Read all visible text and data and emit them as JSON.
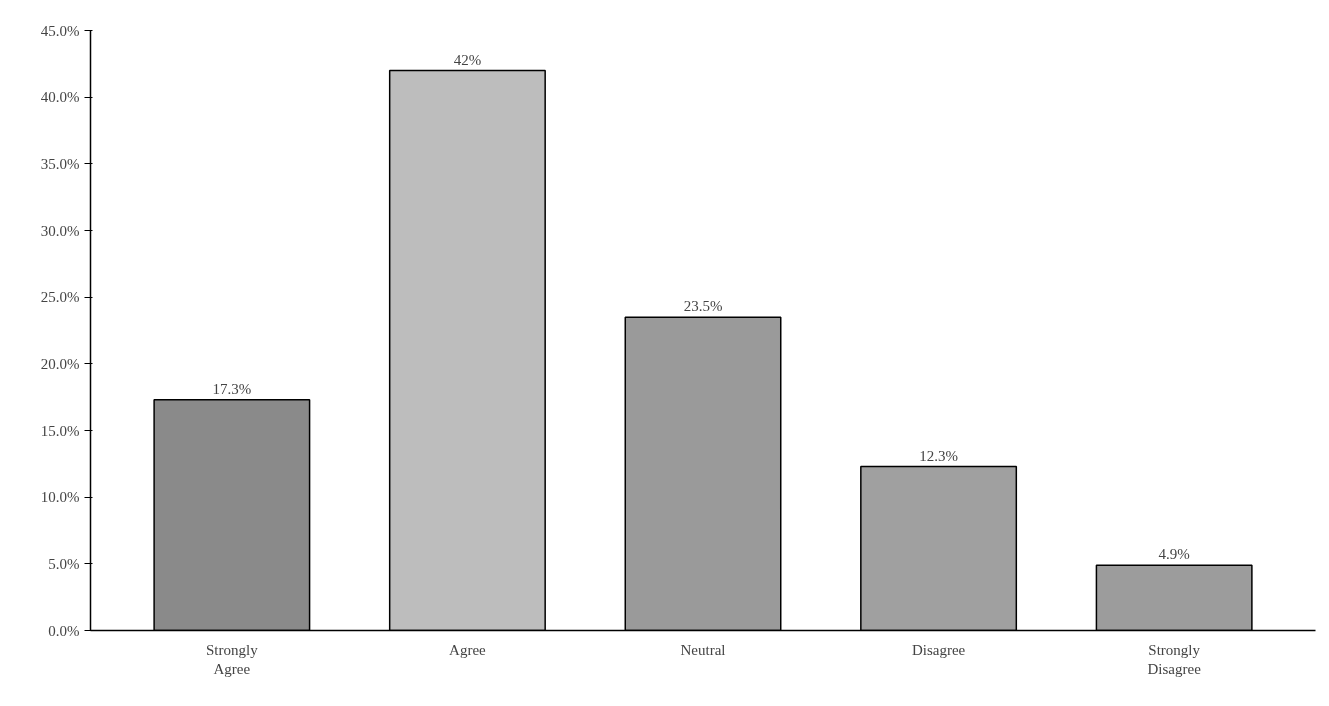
{
  "chart_data": {
    "type": "bar",
    "categories": [
      "Strongly\nAgree",
      "Agree",
      "Neutral",
      "Disagree",
      "Strongly\nDisagree"
    ],
    "values": [
      17.3,
      42,
      23.5,
      12.3,
      4.9
    ],
    "value_labels": [
      "17.3%",
      "42%",
      "23.5%",
      "12.3%",
      "4.9%"
    ],
    "colors": [
      "#8a8a8a",
      "#bdbdbd",
      "#9a9a9a",
      "#a0a0a0",
      "#9c9c9c"
    ],
    "ylim": [
      0,
      45
    ],
    "yticks": [
      {
        "value": 0,
        "label": "0.0%"
      },
      {
        "value": 5,
        "label": "5.0%"
      },
      {
        "value": 10,
        "label": "10.0%"
      },
      {
        "value": 15,
        "label": "15.0%"
      },
      {
        "value": 20,
        "label": "20.0%"
      },
      {
        "value": 25,
        "label": "25.0%"
      },
      {
        "value": 30,
        "label": "30.0%"
      },
      {
        "value": 35,
        "label": "35.0%"
      },
      {
        "value": 40,
        "label": "40.0%"
      },
      {
        "value": 45,
        "label": "45.0%"
      }
    ],
    "grid": false
  }
}
